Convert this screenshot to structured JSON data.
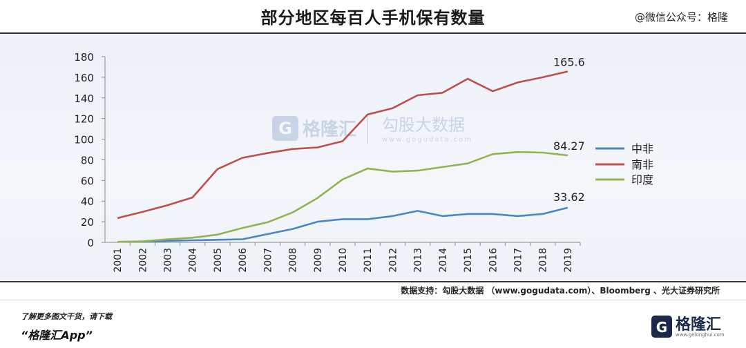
{
  "header": {
    "title": "部分地区每百人手机保有数量",
    "wechat": "@微信公众号：格隆"
  },
  "watermark": {
    "brand": "格隆汇",
    "sub_brand": "勾股大数据",
    "url": "www.gogudata.com"
  },
  "chart_data": {
    "type": "line",
    "title": "部分地区每百人手机保有数量",
    "xlabel": "",
    "ylabel": "",
    "x": [
      "2001",
      "2002",
      "2003",
      "2004",
      "2005",
      "2006",
      "2007",
      "2008",
      "2009",
      "2010",
      "2011",
      "2012",
      "2013",
      "2014",
      "2015",
      "2016",
      "2017",
      "2018",
      "2019"
    ],
    "ylim": [
      0,
      180
    ],
    "yticks": [
      0,
      20,
      40,
      60,
      80,
      100,
      120,
      140,
      160,
      180
    ],
    "grid": false,
    "legend_position": "right",
    "series": [
      {
        "name": "中非",
        "color": "#4a86c5",
        "values": [
          0.5,
          0.8,
          1.5,
          2.0,
          2.5,
          3.0,
          8.0,
          13.0,
          20.0,
          22.5,
          22.5,
          25.5,
          30.5,
          25.5,
          27.5,
          27.5,
          25.5,
          27.5,
          33.62
        ],
        "end_label": "33.62"
      },
      {
        "name": "南非",
        "color": "#bf4e4a",
        "values": [
          23.5,
          29.5,
          36.0,
          43.5,
          71.0,
          82.0,
          86.5,
          90.5,
          92.0,
          98.0,
          124.0,
          130.0,
          142.5,
          145.0,
          158.5,
          146.5,
          155.0,
          160.0,
          165.6
        ],
        "end_label": "165.6"
      },
      {
        "name": "印度",
        "color": "#8fb551",
        "values": [
          0.5,
          1.0,
          3.0,
          4.5,
          7.5,
          14.0,
          19.5,
          29.0,
          43.0,
          61.0,
          71.5,
          68.5,
          69.5,
          73.0,
          76.5,
          85.5,
          87.5,
          87.0,
          84.27
        ],
        "end_label": "84.27"
      }
    ]
  },
  "footer": {
    "source": "数据支持：勾股大数据 （www.gogudata.com）、Bloomberg 、光大证券研究所",
    "promo_line1": "了解更多图文干货，请下载",
    "promo_line2": "“格隆汇App”",
    "logo_text": "格隆汇",
    "logo_url": "www.gelonghui.com"
  }
}
